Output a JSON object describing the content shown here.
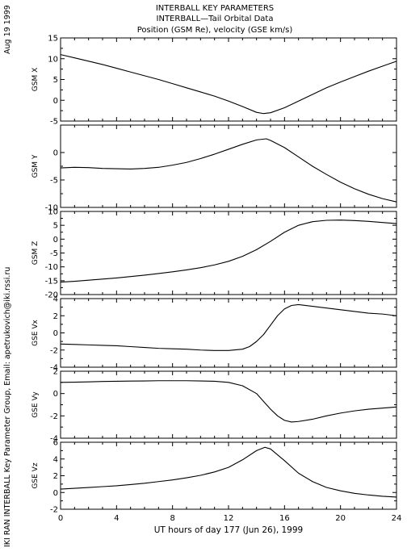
{
  "header": {
    "title_lines": [
      "INTERBALL KEY PARAMETERS",
      "INTERBALL—Tail Orbital Data",
      "Position (GSM Re), velocity (GSE km/s)"
    ],
    "date_stamp": "Aug 19 1999",
    "credit": "IKI RAN INTERBALL Key Parameter Group, Email: apetrukovich@iki.rssi.ru"
  },
  "colors": {
    "line": "#000000",
    "frame": "#000000",
    "background": "#ffffff"
  },
  "chart_data": [
    {
      "type": "line",
      "ylabel": "GSM X",
      "ylim": [
        -5,
        15
      ],
      "yticks": [
        -5,
        0,
        5,
        10,
        15
      ],
      "x": [
        0,
        1,
        2,
        3,
        4,
        5,
        6,
        7,
        8,
        9,
        10,
        11,
        12,
        13,
        14,
        14.5,
        15,
        16,
        17,
        18,
        19,
        20,
        21,
        22,
        23,
        24
      ],
      "values": [
        11,
        10.2,
        9.4,
        8.6,
        7.7,
        6.8,
        5.9,
        5.0,
        4.0,
        3.0,
        2.0,
        1.0,
        -0.2,
        -1.5,
        -2.9,
        -3.2,
        -3.0,
        -1.8,
        -0.2,
        1.4,
        3.0,
        4.4,
        5.7,
        7.0,
        8.2,
        9.4
      ],
      "grid": false
    },
    {
      "type": "line",
      "ylabel": "GSM Y",
      "ylim": [
        -10,
        5
      ],
      "yticks": [
        -10,
        -5,
        0
      ],
      "x": [
        0,
        1,
        2,
        3,
        4,
        5,
        6,
        7,
        8,
        9,
        10,
        11,
        12,
        13,
        14,
        14.7,
        15,
        16,
        17,
        18,
        19,
        20,
        21,
        22,
        23,
        24
      ],
      "values": [
        -2.8,
        -2.7,
        -2.75,
        -2.9,
        -2.95,
        -3.0,
        -2.9,
        -2.7,
        -2.3,
        -1.8,
        -1.1,
        -0.3,
        0.6,
        1.5,
        2.3,
        2.5,
        2.2,
        0.9,
        -0.8,
        -2.5,
        -4.0,
        -5.4,
        -6.6,
        -7.6,
        -8.4,
        -9.0
      ],
      "grid": false
    },
    {
      "type": "line",
      "ylabel": "GSM Z",
      "ylim": [
        -20,
        10
      ],
      "yticks": [
        -20,
        -15,
        -10,
        -5,
        0,
        5,
        10
      ],
      "x": [
        0,
        1,
        2,
        3,
        4,
        5,
        6,
        7,
        8,
        9,
        10,
        11,
        12,
        13,
        14,
        15,
        16,
        17,
        18,
        19,
        20,
        21,
        22,
        23,
        24
      ],
      "values": [
        -15.5,
        -15.2,
        -14.8,
        -14.4,
        -14.0,
        -13.5,
        -13.0,
        -12.4,
        -11.8,
        -11.1,
        -10.3,
        -9.3,
        -8.0,
        -6.2,
        -3.8,
        -0.8,
        2.5,
        5.0,
        6.3,
        6.8,
        6.9,
        6.7,
        6.4,
        6.0,
        5.6
      ],
      "grid": false
    },
    {
      "type": "line",
      "ylabel": "GSE Vx",
      "ylim": [
        -4,
        4
      ],
      "yticks": [
        -4,
        -2,
        0,
        2,
        4
      ],
      "x": [
        0,
        1,
        2,
        3,
        4,
        5,
        6,
        7,
        8,
        9,
        10,
        11,
        12,
        13,
        13.5,
        14,
        14.5,
        15,
        15.5,
        16,
        16.5,
        17,
        18,
        19,
        20,
        21,
        22,
        23,
        24
      ],
      "values": [
        -1.3,
        -1.35,
        -1.4,
        -1.45,
        -1.5,
        -1.6,
        -1.7,
        -1.8,
        -1.85,
        -1.9,
        -2.0,
        -2.05,
        -2.05,
        -1.9,
        -1.6,
        -1.0,
        -0.2,
        0.9,
        2.0,
        2.8,
        3.2,
        3.3,
        3.1,
        2.9,
        2.7,
        2.5,
        2.3,
        2.2,
        2.0
      ],
      "grid": false
    },
    {
      "type": "line",
      "ylabel": "GSE Vy",
      "ylim": [
        -4,
        2
      ],
      "yticks": [
        -4,
        -2,
        0,
        2
      ],
      "x": [
        0,
        1,
        2,
        3,
        4,
        5,
        6,
        7,
        8,
        9,
        10,
        11,
        12,
        13,
        14,
        14.5,
        15,
        15.5,
        16,
        16.5,
        17,
        18,
        19,
        20,
        21,
        22,
        23,
        24
      ],
      "values": [
        1.0,
        1.02,
        1.05,
        1.08,
        1.1,
        1.12,
        1.13,
        1.15,
        1.15,
        1.15,
        1.13,
        1.1,
        1.0,
        0.7,
        0.0,
        -0.7,
        -1.4,
        -2.0,
        -2.4,
        -2.55,
        -2.5,
        -2.3,
        -2.0,
        -1.75,
        -1.55,
        -1.4,
        -1.3,
        -1.2
      ],
      "grid": false
    },
    {
      "type": "line",
      "ylabel": "GSE Vz",
      "ylim": [
        -2,
        6
      ],
      "yticks": [
        -2,
        0,
        2,
        4,
        6
      ],
      "x": [
        0,
        1,
        2,
        3,
        4,
        5,
        6,
        7,
        8,
        9,
        10,
        11,
        12,
        13,
        14,
        14.6,
        15,
        16,
        17,
        18,
        19,
        20,
        21,
        22,
        23,
        24
      ],
      "values": [
        0.4,
        0.5,
        0.6,
        0.7,
        0.8,
        0.95,
        1.1,
        1.3,
        1.5,
        1.75,
        2.05,
        2.45,
        3.0,
        3.9,
        5.0,
        5.4,
        5.2,
        3.8,
        2.3,
        1.3,
        0.6,
        0.2,
        -0.1,
        -0.3,
        -0.45,
        -0.55
      ],
      "grid": false
    }
  ],
  "x_axis": {
    "xlabel": "UT hours of day 177 (Jun 26), 1999",
    "xlim": [
      0,
      24
    ],
    "ticks": [
      0,
      4,
      8,
      12,
      16,
      20,
      24
    ],
    "tick_labels": [
      "0",
      "4",
      "8",
      "12",
      "16",
      "20",
      "24"
    ]
  }
}
